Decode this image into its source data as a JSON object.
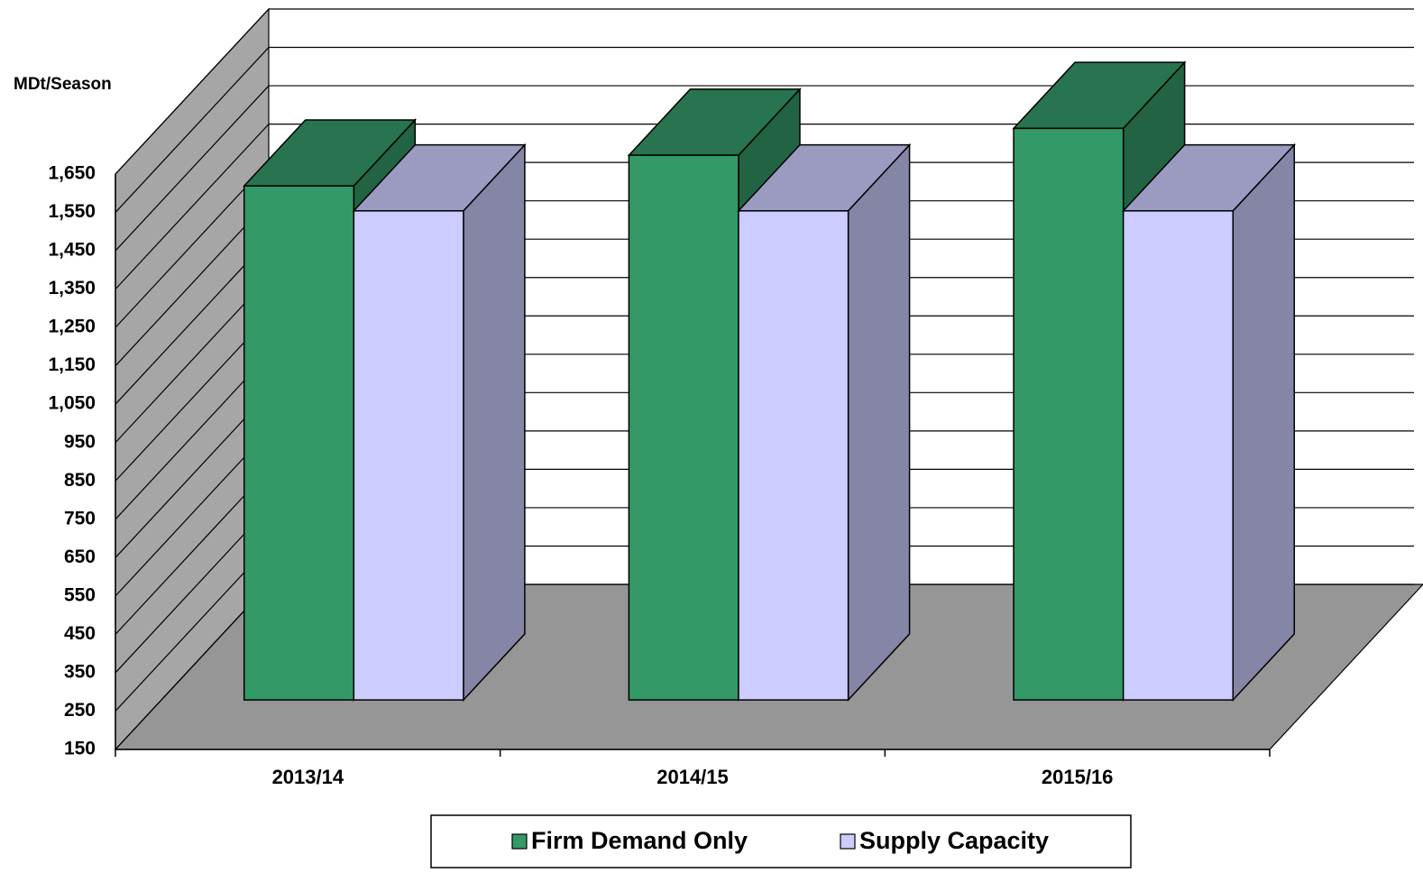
{
  "chart_data": {
    "type": "bar3d",
    "y_axis_label": "MDt/Season",
    "categories": [
      "2013/14",
      "2014/15",
      "2015/16"
    ],
    "series": [
      {
        "name": "Firm Demand Only",
        "color": "#339966",
        "values": [
          1490,
          1570,
          1640
        ]
      },
      {
        "name": "Supply Capacity",
        "color": "#ccccff",
        "values": [
          1425,
          1425,
          1425
        ]
      }
    ],
    "ylim": [
      150,
      1650
    ],
    "yticks": [
      150,
      250,
      350,
      450,
      550,
      650,
      750,
      850,
      950,
      {
        "value": 1050,
        "label": "1,050"
      },
      {
        "value": 1150,
        "label": "1,150"
      },
      {
        "value": 1250,
        "label": "1,250"
      },
      {
        "value": 1350,
        "label": "1,350"
      },
      {
        "value": 1450,
        "label": "1,450"
      },
      {
        "value": 1550,
        "label": "1,550"
      },
      {
        "value": 1650,
        "label": "1,650"
      }
    ],
    "grid": true,
    "legend": "bottom"
  }
}
